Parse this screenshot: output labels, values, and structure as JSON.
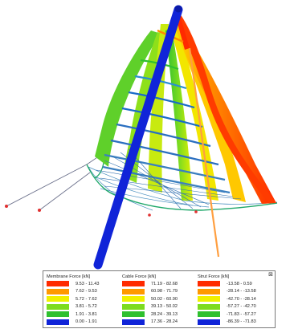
{
  "legend": {
    "groups": [
      {
        "title": "Membrane Force [kN]",
        "rows": [
          {
            "range": "9.53 - 11.43",
            "color": "#ff2a00"
          },
          {
            "range": "7.62 - 9.53",
            "color": "#ff9900"
          },
          {
            "range": "5.72 - 7.62",
            "color": "#f0f000"
          },
          {
            "range": "3.81 - 5.72",
            "color": "#7ddc1f"
          },
          {
            "range": "1.91 - 3.81",
            "color": "#2fc02f"
          },
          {
            "range": "0.00 - 1.91",
            "color": "#1024d8"
          }
        ]
      },
      {
        "title": "Cable Force [kN]",
        "rows": [
          {
            "range": "71.19 - 82.68",
            "color": "#ff2a00"
          },
          {
            "range": "60.98 - 71.79",
            "color": "#ff9900"
          },
          {
            "range": "50.02 - 60.90",
            "color": "#f0f000"
          },
          {
            "range": "39.13 - 50.02",
            "color": "#7ddc1f"
          },
          {
            "range": "28.24 - 39.13",
            "color": "#2fc02f"
          },
          {
            "range": "17.36 - 28.24",
            "color": "#1024d8"
          }
        ]
      },
      {
        "title": "Strut Force [kN]",
        "rows": [
          {
            "range": "-13.58 - 0.59",
            "color": "#ff2a00"
          },
          {
            "range": "-28.14 - -13.58",
            "color": "#ff9900"
          },
          {
            "range": "-42.70 - -28.14",
            "color": "#f0f000"
          },
          {
            "range": "-57.27 - -42.70",
            "color": "#7ddc1f"
          },
          {
            "range": "-71.83 - -57.27",
            "color": "#2fc02f"
          },
          {
            "range": "-86.39 - -71.83",
            "color": "#1024d8"
          }
        ]
      }
    ],
    "close_symbol": "⊠"
  }
}
